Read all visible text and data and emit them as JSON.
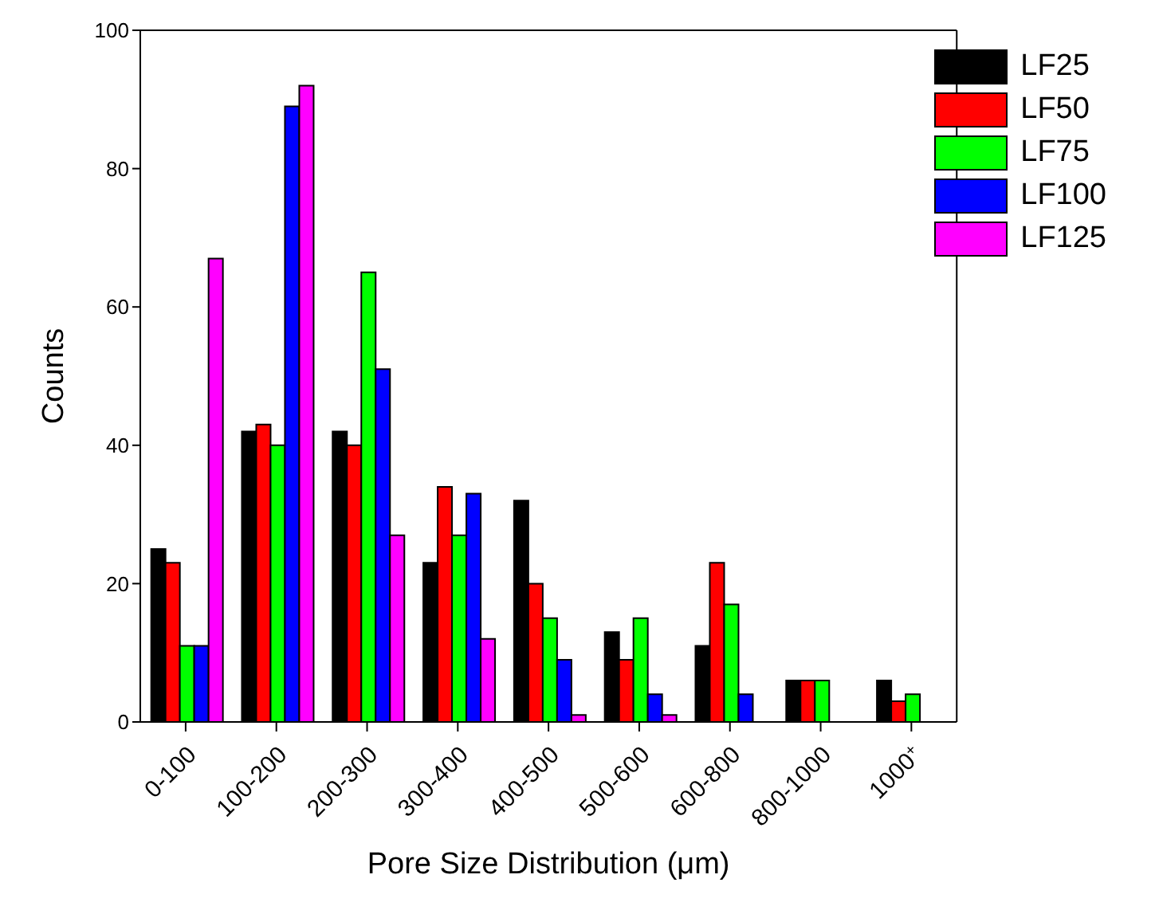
{
  "chart_data": {
    "type": "bar",
    "xlabel": "Pore Size Distribution (μm)",
    "ylabel": "Counts",
    "categories": [
      "0-100",
      "100-200",
      "200-300",
      "300-400",
      "400-500",
      "500-600",
      "600-800",
      "800-1000",
      "1000$^{+}$"
    ],
    "series": [
      {
        "name": "LF25",
        "color": "#000000",
        "values": [
          25,
          42,
          42,
          23,
          32,
          13,
          11,
          6,
          6
        ]
      },
      {
        "name": "LF50",
        "color": "#ff0000",
        "values": [
          23,
          43,
          40,
          34,
          20,
          9,
          23,
          6,
          3
        ]
      },
      {
        "name": "LF75",
        "color": "#00ff00",
        "values": [
          11,
          40,
          65,
          27,
          15,
          15,
          17,
          6,
          4
        ]
      },
      {
        "name": "LF100",
        "color": "#0000ff",
        "values": [
          11,
          89,
          51,
          33,
          9,
          4,
          4,
          null,
          null
        ]
      },
      {
        "name": "LF125",
        "color": "#ff00ff",
        "values": [
          67,
          92,
          27,
          12,
          1,
          1,
          null,
          null,
          null
        ]
      }
    ],
    "ylim": [
      0,
      100
    ],
    "yticks": [
      0,
      20,
      40,
      60,
      80,
      100
    ],
    "legend": "top right"
  }
}
